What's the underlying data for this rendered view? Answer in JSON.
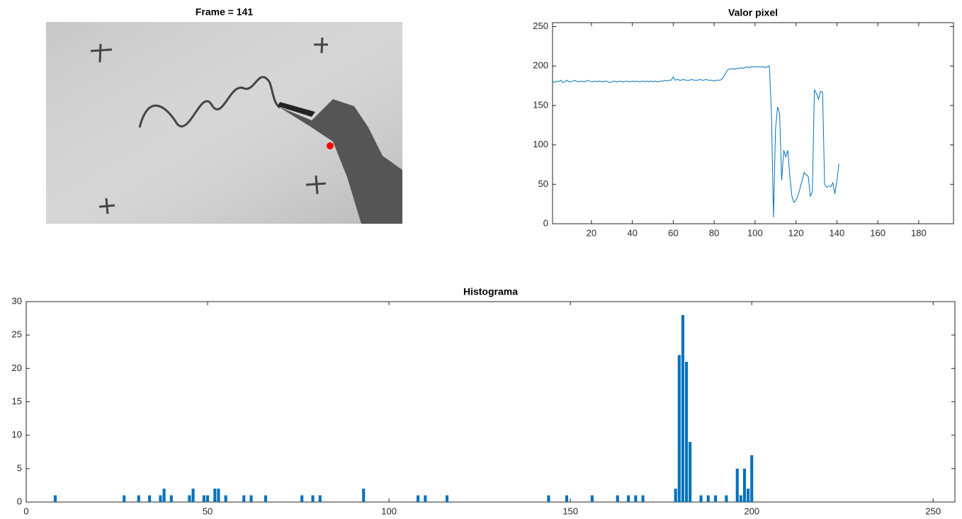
{
  "chart_data": [
    {
      "type": "image",
      "title": "Frame = 141"
    },
    {
      "type": "line",
      "title": "Valor pixel",
      "color": "#0072BD",
      "x": [
        1,
        2,
        3,
        4,
        5,
        6,
        7,
        8,
        9,
        10,
        11,
        12,
        13,
        14,
        15,
        16,
        17,
        18,
        19,
        20,
        21,
        22,
        23,
        24,
        25,
        26,
        27,
        28,
        29,
        30,
        31,
        32,
        33,
        34,
        35,
        36,
        37,
        38,
        39,
        40,
        41,
        42,
        43,
        44,
        45,
        46,
        47,
        48,
        49,
        50,
        51,
        52,
        53,
        54,
        55,
        56,
        57,
        58,
        59,
        60,
        61,
        62,
        63,
        64,
        65,
        66,
        67,
        68,
        69,
        70,
        71,
        72,
        73,
        74,
        75,
        76,
        77,
        78,
        79,
        80,
        81,
        82,
        83,
        84,
        85,
        86,
        87,
        88,
        89,
        90,
        91,
        92,
        93,
        94,
        95,
        96,
        97,
        98,
        99,
        100,
        101,
        102,
        103,
        104,
        105,
        106,
        107,
        108,
        109,
        110,
        111,
        112,
        113,
        114,
        115,
        116,
        117,
        118,
        119,
        120,
        121,
        122,
        123,
        124,
        125,
        126,
        127,
        128,
        129,
        130,
        131,
        132,
        133,
        134,
        135,
        136,
        137,
        138,
        139,
        140,
        141
      ],
      "values": [
        181,
        179,
        181,
        180,
        182,
        179,
        180,
        182,
        180,
        180,
        181,
        182,
        180,
        180,
        181,
        180,
        180,
        182,
        181,
        180,
        180,
        181,
        180,
        181,
        180,
        180,
        181,
        180,
        179,
        180,
        181,
        180,
        180,
        181,
        180,
        180,
        181,
        180,
        180,
        181,
        180,
        181,
        180,
        180,
        181,
        180,
        181,
        180,
        181,
        180,
        181,
        180,
        180,
        181,
        181,
        182,
        181,
        182,
        182,
        186,
        182,
        183,
        182,
        182,
        183,
        182,
        182,
        182,
        183,
        182,
        182,
        182,
        183,
        182,
        182,
        183,
        182,
        182,
        182,
        181,
        182,
        182,
        182,
        184,
        188,
        193,
        196,
        196,
        197,
        196,
        197,
        197,
        198,
        197,
        198,
        199,
        198,
        199,
        199,
        199,
        199,
        199,
        199,
        199,
        198,
        199,
        200,
        140,
        8,
        120,
        148,
        140,
        55,
        93,
        85,
        93,
        60,
        35,
        27,
        30,
        36,
        45,
        55,
        65,
        62,
        60,
        35,
        40,
        170,
        165,
        158,
        168,
        167,
        50,
        46,
        48,
        47,
        52,
        38,
        55,
        76
      ],
      "xlim": [
        1,
        197
      ],
      "ylim": [
        0,
        255
      ],
      "xticks": [
        20,
        40,
        60,
        80,
        100,
        120,
        140,
        160,
        180
      ],
      "yticks": [
        0,
        50,
        100,
        150,
        200,
        250
      ]
    },
    {
      "type": "bar",
      "title": "Histograma",
      "color": "#0072BD",
      "x": [
        8,
        27,
        31,
        34,
        37,
        38,
        40,
        45,
        46,
        49,
        50,
        52,
        53,
        55,
        60,
        62,
        66,
        76,
        79,
        81,
        93,
        108,
        110,
        116,
        144,
        149,
        156,
        163,
        166,
        168,
        170,
        179,
        180,
        181,
        182,
        183,
        186,
        188,
        190,
        193,
        196,
        197,
        198,
        199,
        200
      ],
      "values": [
        1,
        1,
        1,
        1,
        1,
        2,
        1,
        1,
        2,
        1,
        1,
        2,
        2,
        1,
        1,
        1,
        1,
        1,
        1,
        1,
        2,
        1,
        1,
        1,
        1,
        1,
        1,
        1,
        1,
        1,
        1,
        2,
        22,
        28,
        21,
        9,
        1,
        1,
        1,
        1,
        5,
        1,
        5,
        2,
        7
      ],
      "xlim": [
        0,
        256
      ],
      "ylim": [
        0,
        30
      ],
      "xticks": [
        0,
        50,
        100,
        150,
        200,
        250
      ],
      "yticks": [
        0,
        5,
        10,
        15,
        20,
        25,
        30
      ]
    }
  ]
}
